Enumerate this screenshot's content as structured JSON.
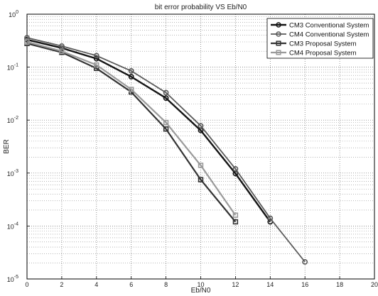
{
  "chart_data": {
    "type": "line",
    "title": "bit error probability VS Eb/N0",
    "xlabel": "Eb/N0",
    "ylabel": "BER",
    "xlim": [
      0,
      20
    ],
    "ylim": [
      1e-05,
      1
    ],
    "yscale": "log",
    "grid": true,
    "legend_position": "top-right",
    "x_ticks": [
      "0",
      "2",
      "4",
      "6",
      "8",
      "10",
      "12",
      "14",
      "16",
      "18",
      "20"
    ],
    "y_ticks": [
      {
        "base": "10",
        "exp": "0"
      },
      {
        "base": "10",
        "exp": "-1"
      },
      {
        "base": "10",
        "exp": "-2"
      },
      {
        "base": "10",
        "exp": "-3"
      },
      {
        "base": "10",
        "exp": "-4"
      },
      {
        "base": "10",
        "exp": "-5"
      }
    ],
    "series": [
      {
        "name": "CM3 Conventional System",
        "color": "#151515",
        "marker": "circle",
        "width": 2.4,
        "x": [
          0,
          2,
          4,
          6,
          8,
          10,
          12,
          14
        ],
        "y": [
          0.33,
          0.23,
          0.145,
          0.066,
          0.026,
          0.0064,
          0.00098,
          0.00012
        ]
      },
      {
        "name": "CM4 Conventional System",
        "color": "#5a5a5a",
        "marker": "circle",
        "width": 1.8,
        "x": [
          0,
          2,
          4,
          6,
          8,
          10,
          12,
          14,
          16
        ],
        "y": [
          0.36,
          0.25,
          0.165,
          0.085,
          0.033,
          0.0078,
          0.0012,
          0.00014,
          2.1e-05
        ]
      },
      {
        "name": "CM3 Proposal System",
        "color": "#333333",
        "marker": "square",
        "width": 2.2,
        "x": [
          0,
          2,
          4,
          6,
          8,
          10,
          12
        ],
        "y": [
          0.28,
          0.19,
          0.095,
          0.034,
          0.0068,
          0.00075,
          0.00012
        ]
      },
      {
        "name": "CM4 Proposal System",
        "color": "#9a9a9a",
        "marker": "square",
        "width": 2.2,
        "x": [
          0,
          2,
          4,
          6,
          8,
          10,
          12
        ],
        "y": [
          0.3,
          0.2,
          0.11,
          0.038,
          0.009,
          0.0014,
          0.00016
        ]
      }
    ]
  }
}
